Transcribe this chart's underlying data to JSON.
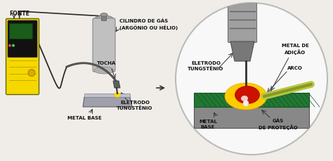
{
  "bg_color": "#f0ede8",
  "left_panel": {
    "fonte_label": "FONTE",
    "cilindro_label": "CILINDRO DE GÁS\n(ARGÔNIO OU HÉLIO)",
    "tocha_label": "TOCHA",
    "metal_base_label": "METAL BASE",
    "eletrodo_label": "ELETRODO\nTUNGSTÊNIO",
    "machine_yellow": "#f5d800",
    "machine_black": "#1a1a1a",
    "cylinder_color": "#b8b8b8",
    "cylinder_dark": "#888888",
    "workpiece_color": "#a8a8b0",
    "wire_color": "#2a2a2a",
    "arrow_color": "#333333",
    "label_color": "#111111"
  },
  "right_panel": {
    "circle_bg": "#f8f8f8",
    "circle_edge": "#cccccc",
    "torch_light": "#a0a0a0",
    "torch_mid": "#787878",
    "torch_dark": "#505050",
    "electrode_color": "#3a3a3a",
    "arc_yellow": "#ffcc00",
    "arc_red": "#cc1100",
    "arc_orange": "#ff6600",
    "workpiece_green": "#228833",
    "workpiece_gray": "#808080",
    "rod_color": "#b8c840",
    "label_color": "#111111",
    "eletrodo_label": "ELETRODO\nTUNGSTÊNIO",
    "metal_adicao_label": "METAL DE\nADIÇÃO",
    "arco_label": "ARCO",
    "metal_base_label": "METAL\nBASE",
    "gas_label": "GÁS\nDE PROTEÇÃO"
  }
}
